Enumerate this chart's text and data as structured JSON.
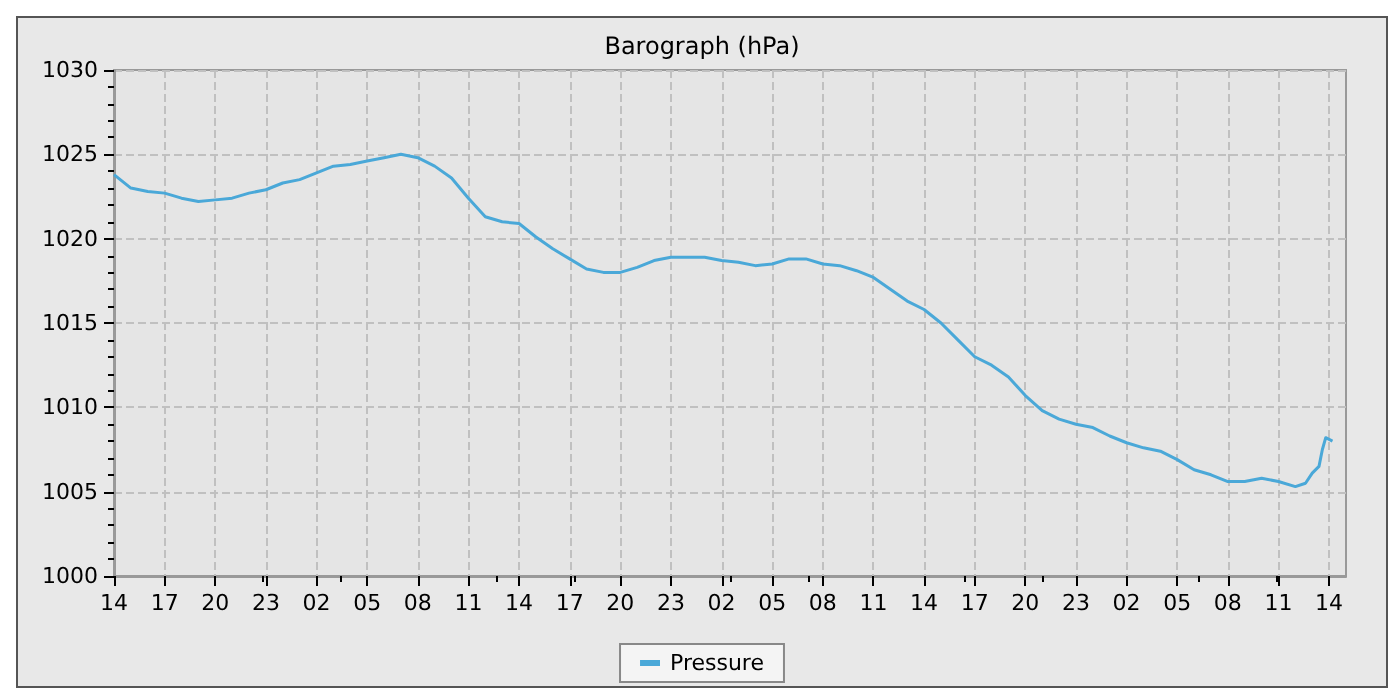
{
  "chart_data": {
    "type": "line",
    "title": "Barograph (hPa)",
    "x": [
      "--01-01T14:00",
      "--01-01T15:00",
      "--01-01T16:00",
      "--01-01T17:00",
      "--01-01T18:00",
      "--01-01T19:00",
      "--01-01T20:00",
      "--01-01T21:00",
      "--01-01T22:00",
      "--01-01T23:00",
      "--01-02T00:00",
      "--01-02T01:00",
      "--01-02T02:00",
      "--01-02T03:00",
      "--01-02T04:00",
      "--01-02T05:00",
      "--01-02T06:00",
      "--01-02T07:00",
      "--01-02T08:00",
      "--01-02T09:00",
      "--01-02T10:00",
      "--01-02T11:00",
      "--01-02T12:00",
      "--01-02T13:00",
      "--01-02T14:00",
      "--01-02T15:00",
      "--01-02T16:00",
      "--01-02T17:00",
      "--01-02T18:00",
      "--01-02T19:00",
      "--01-02T20:00",
      "--01-02T21:00",
      "--01-02T22:00",
      "--01-02T23:00",
      "--01-03T00:00",
      "--01-03T01:00",
      "--01-03T02:00",
      "--01-03T03:00",
      "--01-03T04:00",
      "--01-03T05:00",
      "--01-03T06:00",
      "--01-03T07:00",
      "--01-03T08:00",
      "--01-03T09:00",
      "--01-03T10:00",
      "--01-03T11:00",
      "--01-03T12:00",
      "--01-03T13:00",
      "--01-03T14:00",
      "--01-03T15:00",
      "--01-03T16:00",
      "--01-03T17:00",
      "--01-03T18:00",
      "--01-03T19:00",
      "--01-03T20:00",
      "--01-03T21:00",
      "--01-03T22:00",
      "--01-03T23:00",
      "--01-04T00:00",
      "--01-04T01:00",
      "--01-04T02:00",
      "--01-04T03:00",
      "--01-04T04:00",
      "--01-04T05:00",
      "--01-04T06:00",
      "--01-04T07:00",
      "--01-04T08:00",
      "--01-04T09:00",
      "--01-04T10:00",
      "--01-04T11:00",
      "--01-04T12:00",
      "--01-04T12:36",
      "--01-04T13:00",
      "--01-04T13:24",
      "--01-04T13:36",
      "--01-04T13:48",
      "--01-04T14:12"
    ],
    "series": [
      {
        "name": "Pressure",
        "color": "#4aa8d8",
        "values": [
          1023.8,
          1023.0,
          1022.8,
          1022.7,
          1022.4,
          1022.2,
          1022.3,
          1022.4,
          1022.7,
          1022.9,
          1023.3,
          1023.5,
          1023.9,
          1024.3,
          1024.4,
          1024.6,
          1024.8,
          1025.0,
          1024.8,
          1024.3,
          1023.6,
          1022.4,
          1021.3,
          1021.0,
          1020.9,
          1020.1,
          1019.4,
          1018.8,
          1018.2,
          1018.0,
          1018.0,
          1018.3,
          1018.7,
          1018.9,
          1018.9,
          1018.9,
          1018.7,
          1018.6,
          1018.4,
          1018.5,
          1018.8,
          1018.8,
          1018.5,
          1018.4,
          1018.1,
          1017.7,
          1017.0,
          1016.3,
          1015.8,
          1015.0,
          1014.0,
          1013.0,
          1012.5,
          1011.8,
          1010.7,
          1009.8,
          1009.3,
          1009.0,
          1008.8,
          1008.3,
          1007.9,
          1007.6,
          1007.4,
          1006.9,
          1006.3,
          1006.0,
          1005.6,
          1005.6,
          1005.8,
          1005.6,
          1005.3,
          1005.5,
          1006.1,
          1006.5,
          1007.5,
          1008.2,
          1008.0
        ]
      }
    ],
    "xlim": [
      "--01-01T14:00",
      "--01-04T15:00"
    ],
    "xticks": [
      {
        "value": "--01-01T14:00",
        "label": "14"
      },
      {
        "value": "--01-01T17:00",
        "label": "17"
      },
      {
        "value": "--01-01T20:00",
        "label": "20"
      },
      {
        "value": "--01-01T23:00",
        "label": "23"
      },
      {
        "value": "--01-02T02:00",
        "label": "02"
      },
      {
        "value": "--01-02T05:00",
        "label": "05"
      },
      {
        "value": "--01-02T08:00",
        "label": "08"
      },
      {
        "value": "--01-02T11:00",
        "label": "11"
      },
      {
        "value": "--01-02T14:00",
        "label": "14"
      },
      {
        "value": "--01-02T17:00",
        "label": "17"
      },
      {
        "value": "--01-02T20:00",
        "label": "20"
      },
      {
        "value": "--01-02T23:00",
        "label": "23"
      },
      {
        "value": "--01-03T02:00",
        "label": "02"
      },
      {
        "value": "--01-03T05:00",
        "label": "05"
      },
      {
        "value": "--01-03T08:00",
        "label": "08"
      },
      {
        "value": "--01-03T11:00",
        "label": "11"
      },
      {
        "value": "--01-03T14:00",
        "label": "14"
      },
      {
        "value": "--01-03T17:00",
        "label": "17"
      },
      {
        "value": "--01-03T20:00",
        "label": "20"
      },
      {
        "value": "--01-03T23:00",
        "label": "23"
      },
      {
        "value": "--01-04T02:00",
        "label": "02"
      },
      {
        "value": "--01-04T05:00",
        "label": "05"
      },
      {
        "value": "--01-04T08:00",
        "label": "08"
      },
      {
        "value": "--01-04T11:00",
        "label": "11"
      },
      {
        "value": "--01-04T14:00",
        "label": "14"
      }
    ],
    "ylim": [
      1000,
      1030
    ],
    "yticks": [
      1000,
      1005,
      1010,
      1015,
      1020,
      1025,
      1030
    ],
    "grid": true,
    "line_style": "solid",
    "legend": "bottom",
    "marker": "none"
  }
}
